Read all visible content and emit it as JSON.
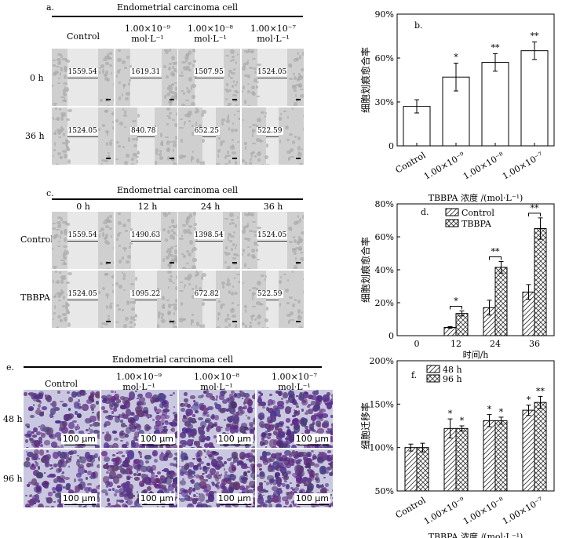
{
  "panel_a": {
    "letter": "a.",
    "title": "Endometrial carcinoma cell",
    "columns": [
      "Control",
      "1.00×10⁻⁹ mol·L⁻¹",
      "1.00×10⁻⁸ mol·L⁻¹",
      "1.00×10⁻⁷ mol·L⁻¹"
    ],
    "rows": [
      "0 h",
      "36 h"
    ],
    "measurements": [
      [
        "1559.54",
        "1619.31",
        "1507.95",
        "1524.05"
      ],
      [
        "1524.05",
        "840.78",
        "652.25",
        "522.59"
      ]
    ]
  },
  "panel_c": {
    "letter": "c.",
    "title": "Endometrial carcinoma cell",
    "columns": [
      "0 h",
      "12 h",
      "24 h",
      "36 h"
    ],
    "rows": [
      "Control",
      "TBBPA"
    ],
    "measurements": [
      [
        "1559.54",
        "1490.63",
        "1398.54",
        "1524.05"
      ],
      [
        "1524.05",
        "1095.22",
        "672.82",
        "522.59"
      ]
    ]
  },
  "panel_e": {
    "letter": "e.",
    "title": "Endometrial carcinoma cell",
    "columns": [
      "Control",
      "1.00×10⁻⁹ mol·L⁻¹",
      "1.00×10⁻⁸ mol·L⁻¹",
      "1.00×10⁻⁷ mol·L⁻¹"
    ],
    "rows": [
      "48 h",
      "96 h"
    ],
    "scale_bar": "100 μm"
  },
  "chart_data": [
    {
      "panel": "b.",
      "type": "bar",
      "ylabel": "细胞划痕愈合率",
      "xlabel": "TBBPA 浓度 /(mol·L⁻¹)",
      "ylim": [
        0,
        90
      ],
      "yticks": [
        "0",
        "30%",
        "60%",
        "90%"
      ],
      "categories": [
        "Control",
        "1.00×10⁻⁹",
        "1.00×10⁻⁸",
        "1.00×10⁻⁷"
      ],
      "values": [
        27,
        47,
        57,
        65
      ],
      "errors": [
        4.5,
        9.5,
        6,
        6
      ],
      "significance": [
        "",
        "*",
        "**",
        "**"
      ]
    },
    {
      "panel": "d.",
      "type": "bar",
      "ylabel": "细胞划痕愈合率",
      "xlabel": "时间/h",
      "ylim": [
        0,
        80
      ],
      "yticks": [
        "0",
        "20%",
        "40%",
        "60%",
        "80%"
      ],
      "categories": [
        "0",
        "12",
        "24",
        "36"
      ],
      "series": [
        {
          "name": "Control",
          "values": [
            0,
            5,
            17,
            26.5
          ],
          "errors": [
            0,
            0.5,
            4.5,
            4.5
          ]
        },
        {
          "name": "TBBPA",
          "values": [
            0,
            13.5,
            41.5,
            65
          ],
          "errors": [
            0,
            1.5,
            3.5,
            6.5
          ]
        }
      ],
      "significance": [
        "",
        "*",
        "**",
        "**"
      ],
      "legend": "top-left"
    },
    {
      "panel": "f.",
      "type": "bar",
      "ylabel": "细胞迁移率",
      "xlabel": "TBBPA 浓度 /(mol·L⁻¹)",
      "ylim": [
        50,
        200
      ],
      "yticks": [
        "50%",
        "100%",
        "150%",
        "200%"
      ],
      "categories": [
        "Control",
        "1.00×10⁻⁹",
        "1.00×10⁻⁸",
        "1.00×10⁻⁷"
      ],
      "series": [
        {
          "name": "48 h",
          "values": [
            100,
            122,
            131,
            143
          ],
          "errors": [
            4,
            11,
            7,
            6
          ],
          "significance": [
            "",
            "*",
            "*",
            "*"
          ]
        },
        {
          "name": "96 h",
          "values": [
            100,
            122,
            131,
            152
          ],
          "errors": [
            5,
            3,
            4,
            7
          ],
          "significance": [
            "",
            "*",
            "*",
            "**"
          ]
        }
      ],
      "legend": "top-left"
    }
  ]
}
